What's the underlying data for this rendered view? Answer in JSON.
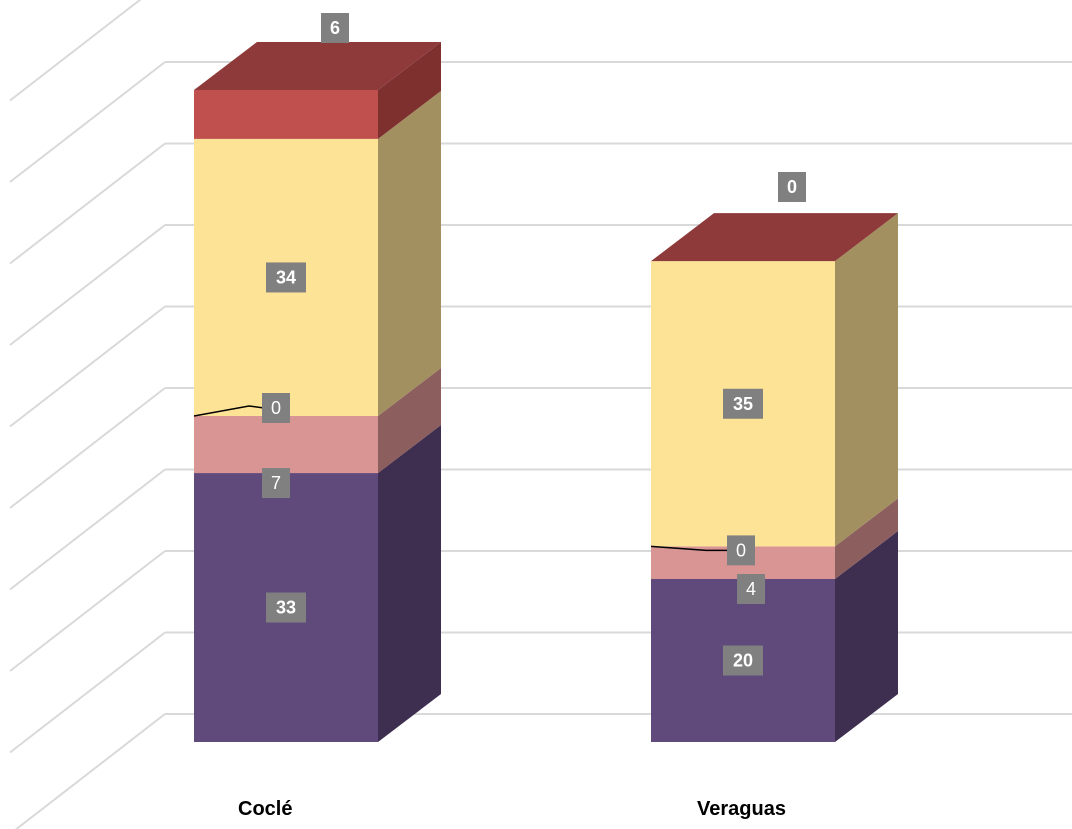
{
  "chart_data": {
    "type": "bar",
    "stacked": true,
    "three_d": true,
    "categories": [
      "Coclé",
      "Veraguas"
    ],
    "series": [
      {
        "values": [
          33,
          20
        ],
        "color": "#5f4a7b",
        "side_color": "#3e2e50",
        "label_style": "bold"
      },
      {
        "values": [
          7,
          4
        ],
        "color": "#d99594",
        "side_color": "#8c5e5e",
        "label_style": "normal"
      },
      {
        "values": [
          0,
          0
        ],
        "color": "#000000",
        "side_color": "#000000",
        "label_style": "normal",
        "leader_line": true
      },
      {
        "values": [
          34,
          35
        ],
        "color": "#fde395",
        "side_color": "#a39060",
        "label_style": "bold"
      },
      {
        "values": [
          6,
          0
        ],
        "color": "#c0504d",
        "side_color": "#7d302e",
        "top_color": "#8e3a3a",
        "label_style": "bold"
      }
    ],
    "ylim": [
      0,
      90
    ],
    "grid": true,
    "legend": "none",
    "data_label_background": "#808080",
    "gridline_color": "#d9d9d9"
  }
}
